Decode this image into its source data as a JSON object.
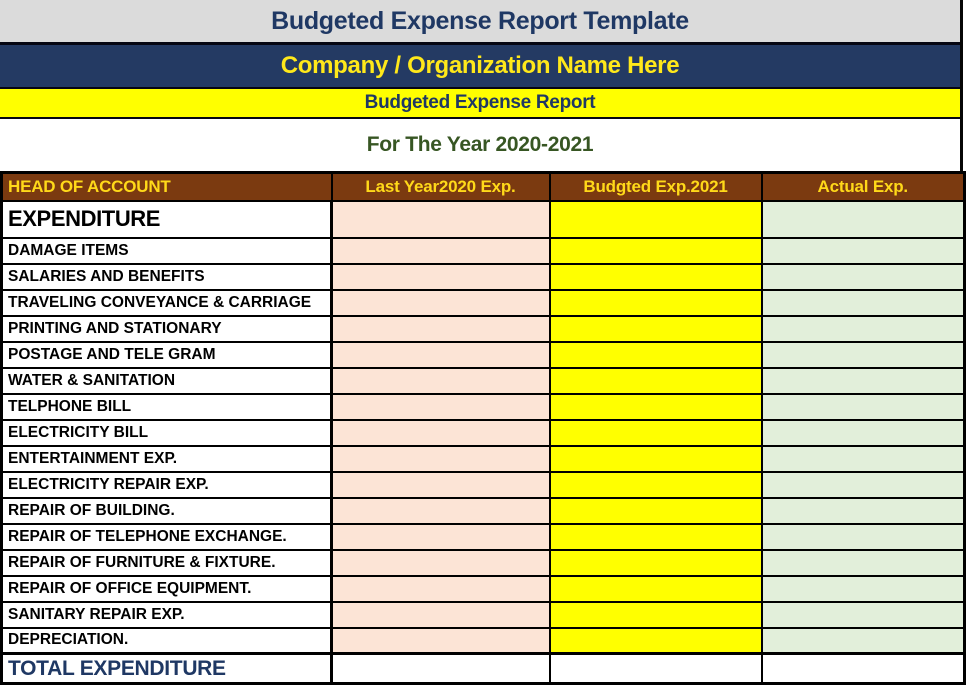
{
  "banner": {
    "title": "Budgeted Expense Report Template",
    "company_name": "Company / Organization Name Here",
    "report_title": "Budgeted Expense Report",
    "period": "For The Year 2020-2021"
  },
  "table": {
    "columns": [
      "HEAD OF ACCOUNT",
      "Last Year2020 Exp.",
      "Budgted Exp.2021",
      "Actual Exp."
    ],
    "section_row": {
      "label": "EXPENDITURE",
      "last_year": "",
      "budgeted": "",
      "actual": ""
    },
    "rows": [
      {
        "label": "DAMAGE ITEMS",
        "last_year": "",
        "budgeted": "",
        "actual": ""
      },
      {
        "label": "SALARIES AND BENEFITS",
        "last_year": "",
        "budgeted": "",
        "actual": ""
      },
      {
        "label": "TRAVELING CONVEYANCE & CARRIAGE",
        "last_year": "",
        "budgeted": "",
        "actual": ""
      },
      {
        "label": "PRINTING AND STATIONARY",
        "last_year": "",
        "budgeted": "",
        "actual": ""
      },
      {
        "label": "POSTAGE AND TELE GRAM",
        "last_year": "",
        "budgeted": "",
        "actual": ""
      },
      {
        "label": "WATER & SANITATION",
        "last_year": "",
        "budgeted": "",
        "actual": ""
      },
      {
        "label": "TELPHONE BILL",
        "last_year": "",
        "budgeted": "",
        "actual": ""
      },
      {
        "label": "ELECTRICITY BILL",
        "last_year": "",
        "budgeted": "",
        "actual": ""
      },
      {
        "label": "ENTERTAINMENT EXP.",
        "last_year": "",
        "budgeted": "",
        "actual": ""
      },
      {
        "label": "ELECTRICITY REPAIR EXP.",
        "last_year": "",
        "budgeted": "",
        "actual": ""
      },
      {
        "label": "REPAIR OF BUILDING.",
        "last_year": "",
        "budgeted": "",
        "actual": ""
      },
      {
        "label": "REPAIR OF TELEPHONE EXCHANGE.",
        "last_year": "",
        "budgeted": "",
        "actual": ""
      },
      {
        "label": "REPAIR OF FURNITURE & FIXTURE.",
        "last_year": "",
        "budgeted": "",
        "actual": ""
      },
      {
        "label": "REPAIR OF OFFICE EQUIPMENT.",
        "last_year": "",
        "budgeted": "",
        "actual": ""
      },
      {
        "label": "SANITARY REPAIR EXP.",
        "last_year": "",
        "budgeted": "",
        "actual": ""
      },
      {
        "label": "DEPRECIATION.",
        "last_year": "",
        "budgeted": "",
        "actual": ""
      }
    ],
    "total_row": {
      "label": "TOTAL EXPENDITURE",
      "last_year": "",
      "budgeted": "",
      "actual": ""
    }
  },
  "colors": {
    "gray-banner": "#dbdbdb",
    "navy-bg": "#243a63",
    "navy-text": "#1f3864",
    "yellow": "#ffff00",
    "yellow-text": "#ffe81a",
    "header-yellow": "#ffd919",
    "green-text": "#375623",
    "brown": "#7b3a10",
    "pink": "#fce4d6",
    "lgreen": "#e2efda"
  }
}
